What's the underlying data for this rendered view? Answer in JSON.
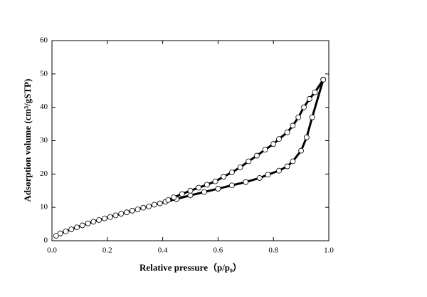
{
  "chart_data": {
    "type": "scatter",
    "xlabel": "Relative pressure（p/p₀）",
    "ylabel": "Adsorption volume (cm³/gSTP)",
    "xlim": [
      0,
      1
    ],
    "ylim": [
      0,
      60
    ],
    "xticks": [
      {
        "value": 0,
        "label": "0.0"
      },
      {
        "value": 0.2,
        "label": "0.2"
      },
      {
        "value": 0.4,
        "label": "0.4"
      },
      {
        "value": 0.6,
        "label": "0.6"
      },
      {
        "value": 0.8,
        "label": "0.8"
      },
      {
        "value": 1,
        "label": "1.0"
      }
    ],
    "yticks": [
      0,
      10,
      20,
      30,
      40,
      50,
      60
    ],
    "series": [
      {
        "color": "#000000",
        "x": [
          0.015,
          0.03,
          0.05,
          0.07,
          0.09,
          0.11,
          0.13,
          0.15,
          0.17,
          0.19,
          0.21,
          0.23,
          0.25,
          0.27,
          0.29,
          0.31,
          0.33,
          0.35,
          0.37,
          0.39,
          0.41,
          0.45,
          0.5,
          0.55,
          0.6,
          0.65,
          0.7,
          0.75,
          0.78,
          0.82,
          0.85,
          0.87,
          0.9,
          0.92,
          0.94,
          0.98
        ],
        "values": [
          1.5,
          2.2,
          2.8,
          3.4,
          4.0,
          4.6,
          5.2,
          5.7,
          6.2,
          6.7,
          7.1,
          7.6,
          8.1,
          8.5,
          9.0,
          9.4,
          9.9,
          10.3,
          10.8,
          11.2,
          11.7,
          12.5,
          13.6,
          14.6,
          15.6,
          16.6,
          17.6,
          18.8,
          19.8,
          21,
          22.3,
          23.8,
          27,
          31,
          37,
          48.3
        ]
      },
      {
        "color": "#000000",
        "x": [
          0.98,
          0.95,
          0.93,
          0.91,
          0.89,
          0.87,
          0.85,
          0.82,
          0.8,
          0.77,
          0.74,
          0.71,
          0.68,
          0.65,
          0.62,
          0.59,
          0.56,
          0.53,
          0.5,
          0.47,
          0.44,
          0.42
        ],
        "values": [
          48.3,
          44.5,
          42.5,
          40,
          37,
          34.5,
          32.5,
          30.5,
          29,
          27.3,
          25.5,
          23.8,
          22,
          20.5,
          19.2,
          17.8,
          16.8,
          15.9,
          15.0,
          14.0,
          13.0,
          12.2
        ]
      }
    ]
  }
}
